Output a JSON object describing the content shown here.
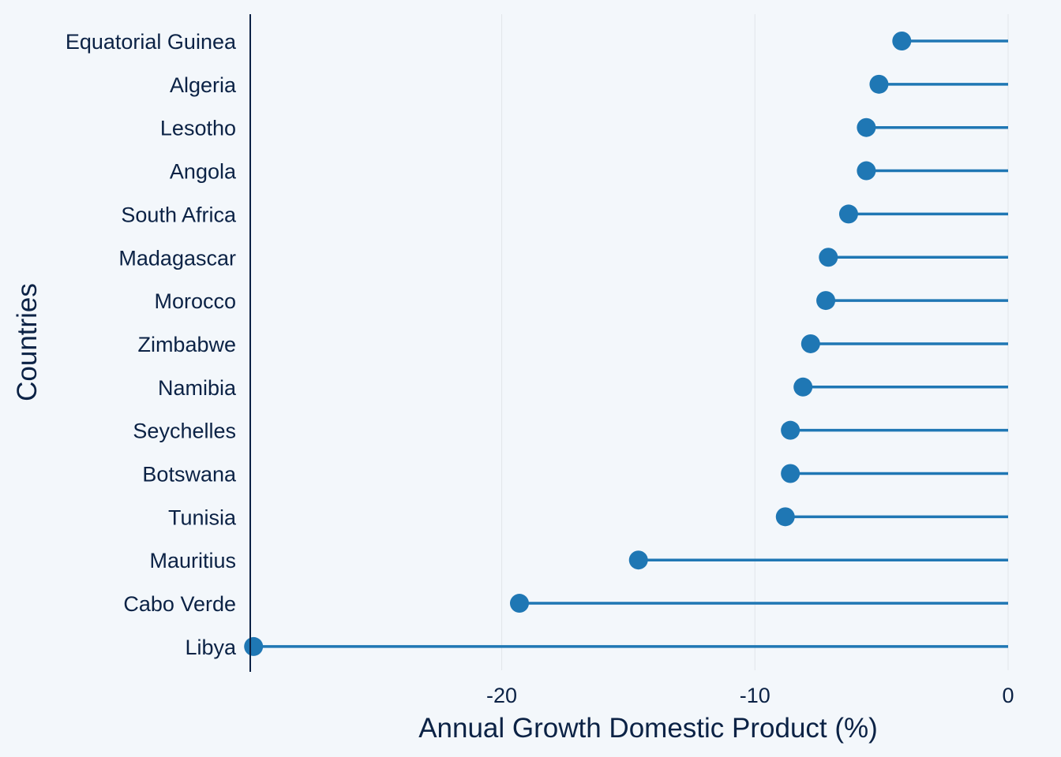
{
  "colors": {
    "background": "#f3f7fb",
    "lollipop": "#1f77b4",
    "text": "#0b2245",
    "axis_line": "#0b2245",
    "grid": "#e1e5ea"
  },
  "chart_data": {
    "type": "lollipop",
    "orientation": "horizontal",
    "xlabel": "Annual Growth Domestic Product (%)",
    "ylabel": "Countries",
    "xlim": [
      -29.9,
      0
    ],
    "xticks": [
      -20,
      -10,
      0
    ],
    "xtick_labels": [
      "-20",
      "-10",
      "0"
    ],
    "grid": "vertical major",
    "categories": [
      "Equatorial Guinea",
      "Algeria",
      "Lesotho",
      "Angola",
      "South Africa",
      "Madagascar",
      "Morocco",
      "Zimbabwe",
      "Namibia",
      "Seychelles",
      "Botswana",
      "Tunisia",
      "Mauritius",
      "Cabo Verde",
      "Libya"
    ],
    "values": [
      -4.2,
      -5.1,
      -5.6,
      -5.6,
      -6.3,
      -7.1,
      -7.2,
      -7.8,
      -8.1,
      -8.6,
      -8.6,
      -8.8,
      -14.6,
      -19.3,
      -29.8
    ]
  }
}
